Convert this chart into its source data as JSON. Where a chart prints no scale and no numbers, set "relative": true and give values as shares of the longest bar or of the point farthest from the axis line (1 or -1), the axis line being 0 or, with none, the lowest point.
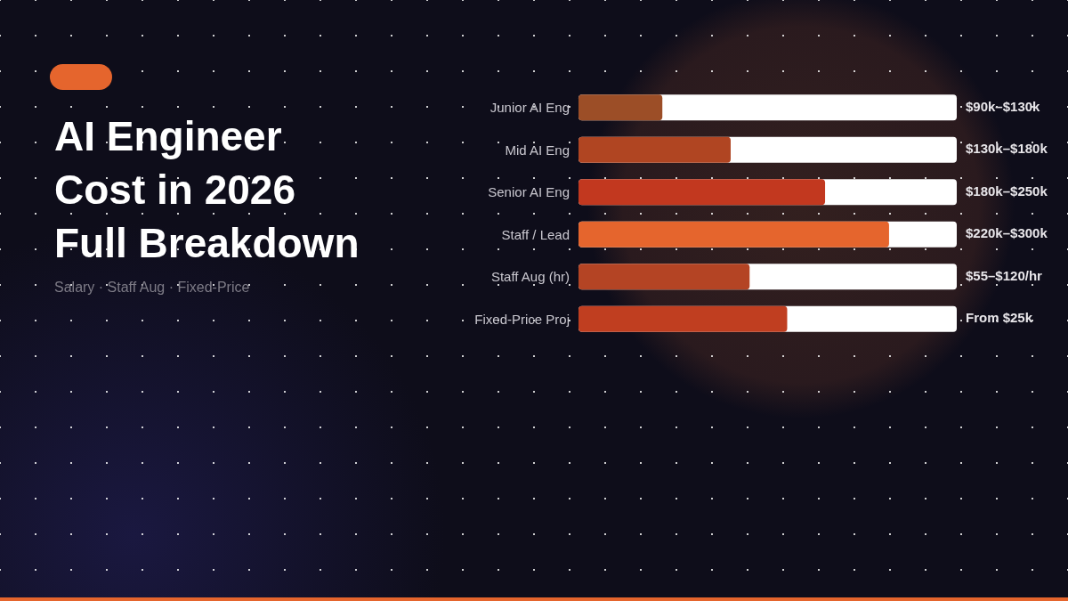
{
  "chart_data": {
    "type": "bar",
    "orientation": "horizontal",
    "relative": true,
    "title": "AI Engineer\nCost in 2026\nFull Breakdown",
    "subtitle": "Salary · Staff Aug · Fixed-Price",
    "categories": [
      "Junior AI Eng",
      "Mid AI Eng",
      "Senior AI Eng",
      "Staff / Lead",
      "Staff Aug (hr)",
      "Fixed-Price Proj"
    ],
    "values": [
      0.27,
      0.49,
      0.794,
      1,
      0.551,
      0.672
    ],
    "colors": [
      "#9c4e27",
      "#b04522",
      "#c2381f",
      "#e5652d",
      "#b44424",
      "#c03e20"
    ],
    "annotations": [
      "$90k–$130k",
      "$130k–$180k",
      "$180k–$250k",
      "$220k–$300k",
      "$55–$120/hr",
      "From $25k"
    ]
  }
}
